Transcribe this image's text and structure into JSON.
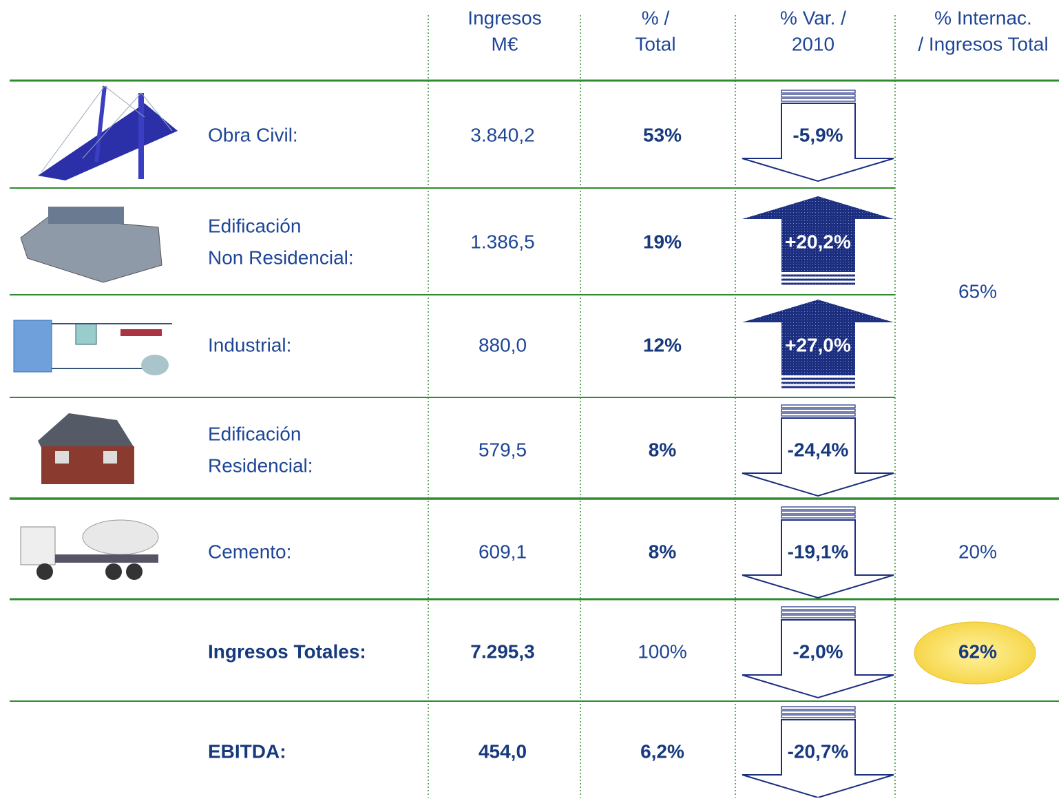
{
  "header": {
    "columns": [
      [
        "Ingresos",
        "M€"
      ],
      [
        "% /",
        "Total"
      ],
      [
        "% Var. /",
        "2010"
      ],
      [
        "% Internac.",
        "/ Ingresos Total"
      ]
    ]
  },
  "rows": [
    {
      "label": [
        "Obra Civil:"
      ],
      "ingresos": "3.840,2",
      "pct_total": "53%",
      "var_2010": "-5,9%"
    },
    {
      "label": [
        "Edificación",
        "Non Residencial:"
      ],
      "ingresos": "1.386,5",
      "pct_total": "19%",
      "var_2010": "+20,2%"
    },
    {
      "label": [
        "Industrial:"
      ],
      "ingresos": "880,0",
      "pct_total": "12%",
      "var_2010": "+27,0%"
    },
    {
      "label": [
        "Edificación",
        "Residencial:"
      ],
      "ingresos": "579,5",
      "pct_total": "8%",
      "var_2010": "-24,4%"
    },
    {
      "label": [
        "Cemento:"
      ],
      "ingresos": "609,1",
      "pct_total": "8%",
      "var_2010": "-19,1%"
    },
    {
      "label": [
        "Ingresos Totales:"
      ],
      "ingresos": "7.295,3",
      "pct_total": "100%",
      "var_2010": "-2,0%"
    },
    {
      "label": [
        "EBITDA:"
      ],
      "ingresos": "454,0",
      "pct_total": "6,2%",
      "var_2010": "-20,7%"
    }
  ],
  "internac": [
    {
      "rows": [
        0,
        3
      ],
      "value": "65%"
    },
    {
      "rows": [
        4,
        4
      ],
      "value": "20%"
    },
    {
      "rows": [
        5,
        5
      ],
      "value": "62%"
    }
  ]
}
